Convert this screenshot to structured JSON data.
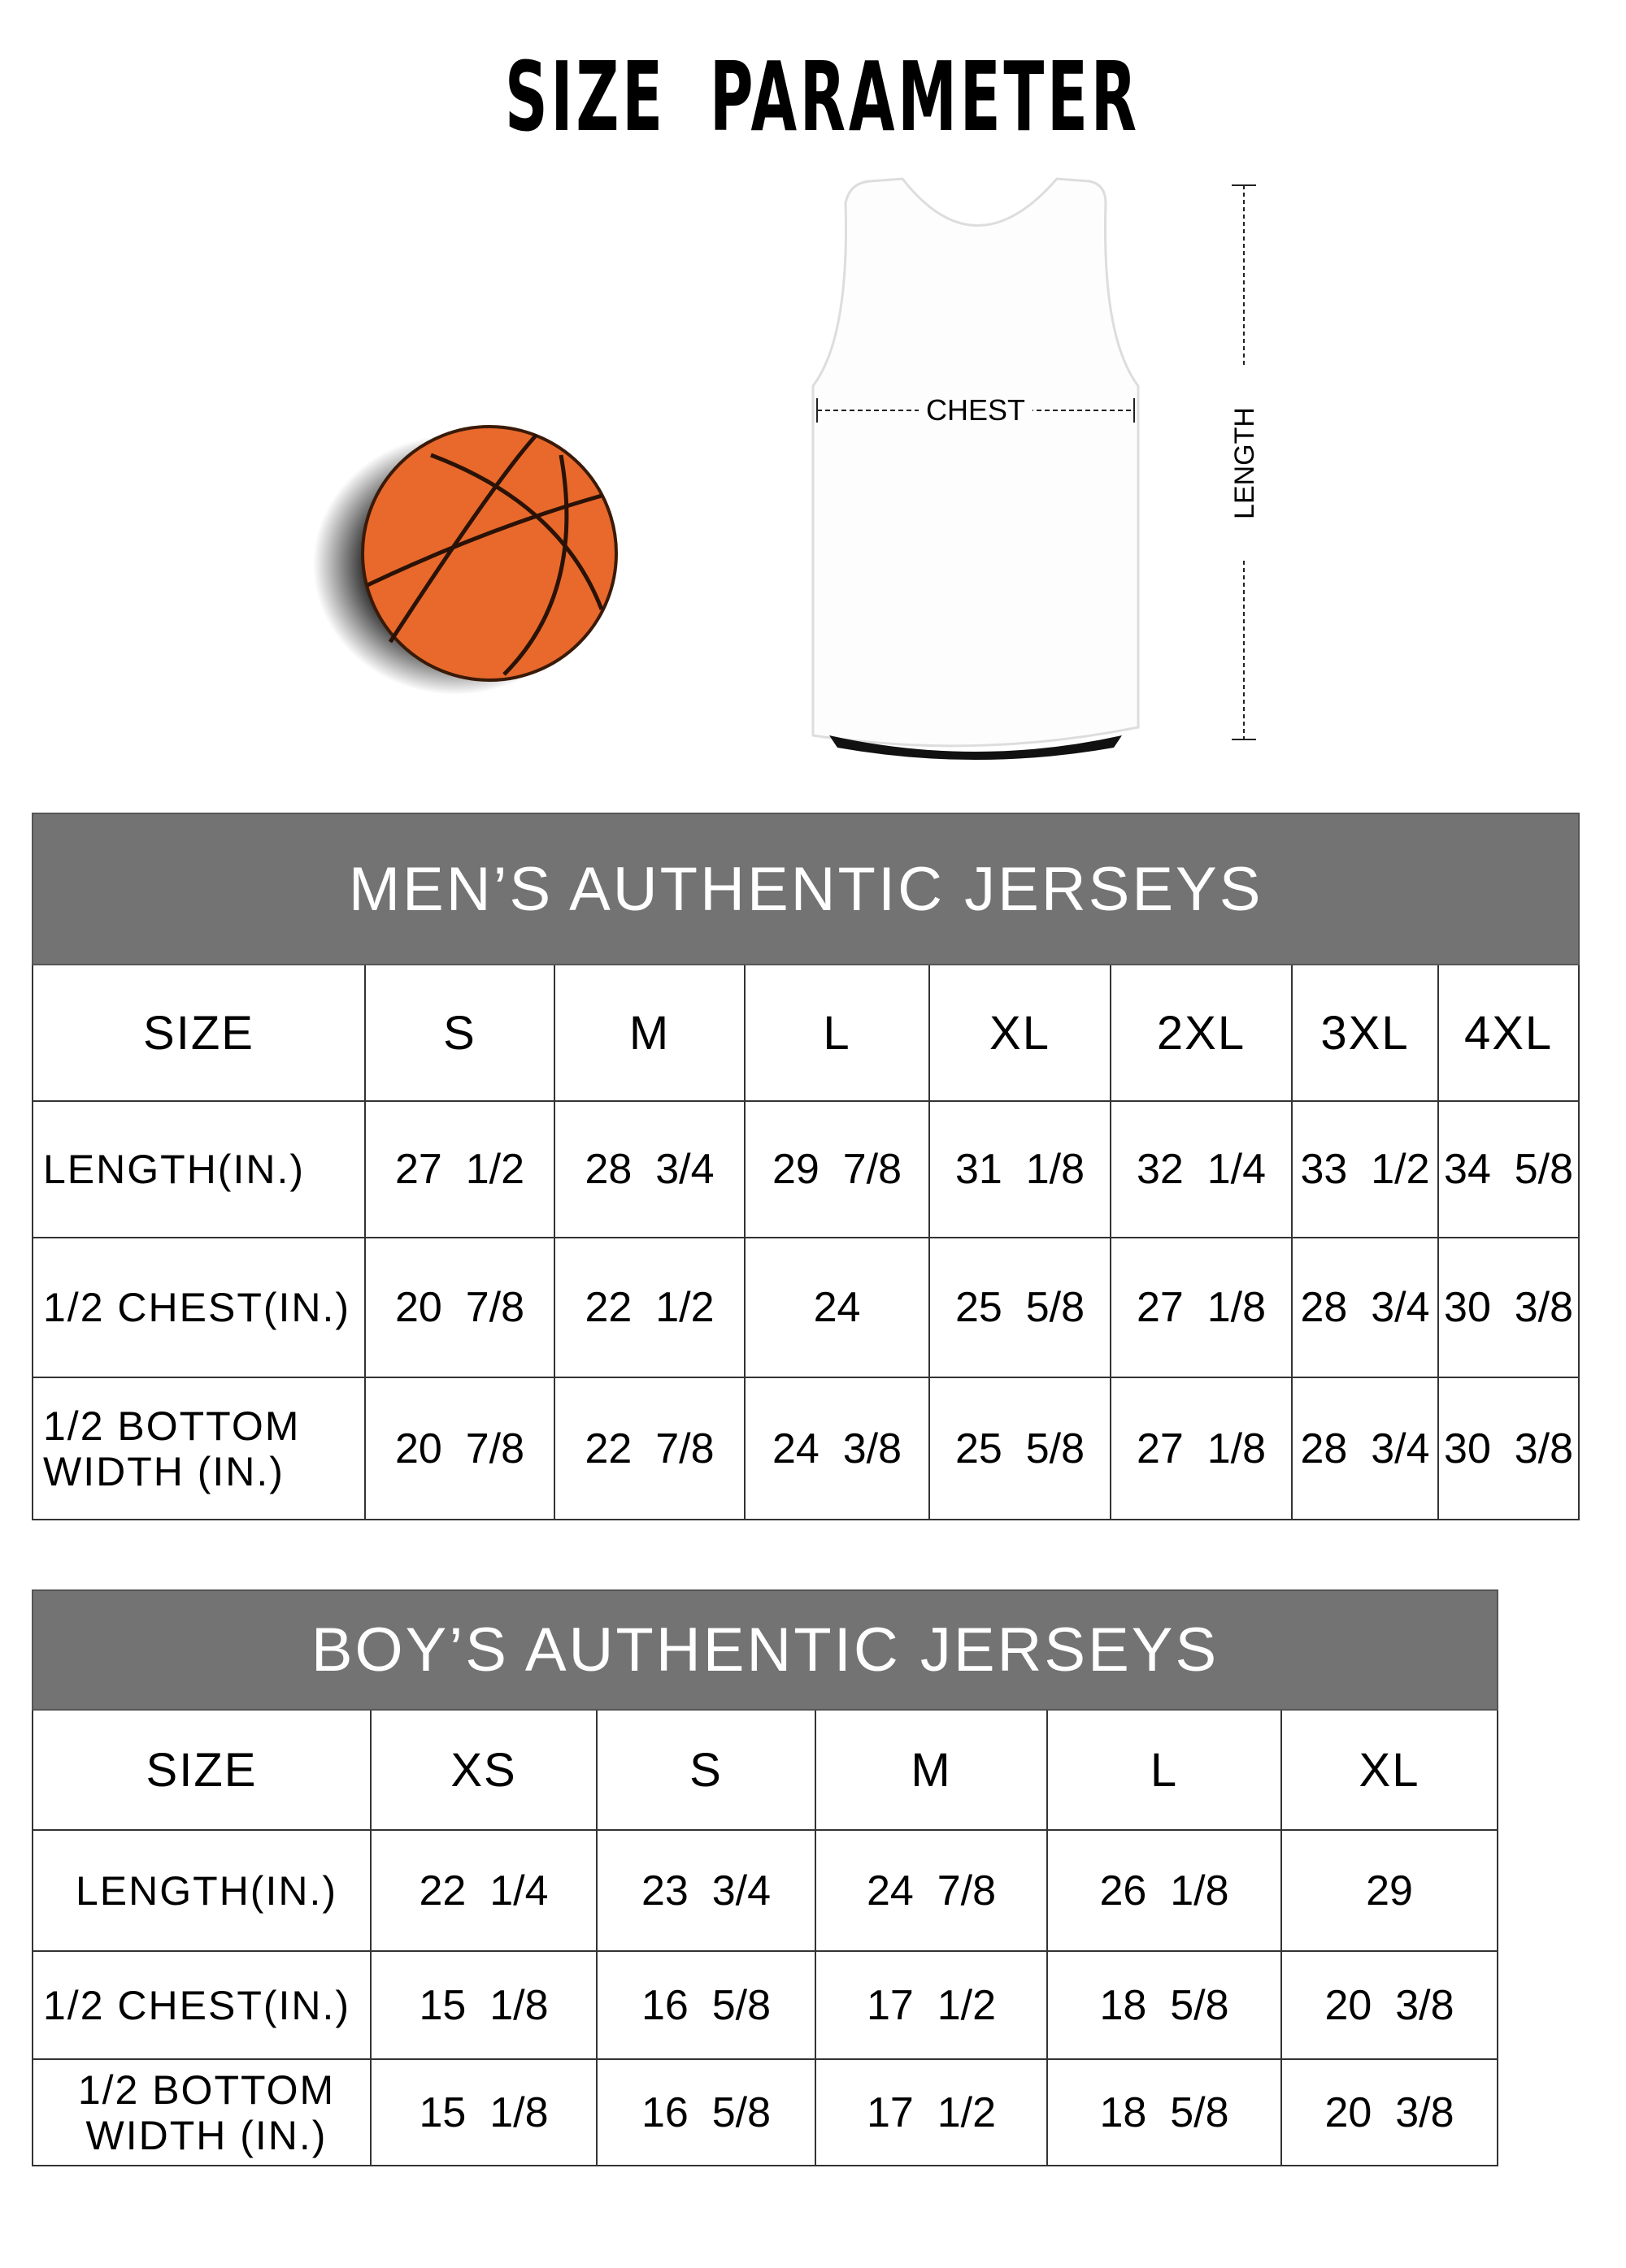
{
  "title": "SIZE PARAMETER",
  "diagram": {
    "chest_label": "CHEST",
    "length_label": "LENGTH",
    "ball_color": "#e8692b",
    "header_color": "#737373"
  },
  "men": {
    "heading": "MEN’S AUTHENTIC JERSEYS",
    "size_label": "SIZE",
    "sizes": [
      "S",
      "M",
      "L",
      "XL",
      "2XL",
      "3XL",
      "4XL"
    ],
    "rows": [
      {
        "label": "LENGTH(IN.)",
        "values": [
          "27  1/2",
          "28  3/4",
          "29  7/8",
          "31  1/8",
          "32  1/4",
          "33  1/2",
          "34  5/8"
        ]
      },
      {
        "label": "1/2 CHEST(IN.)",
        "values": [
          "20  7/8",
          "22  1/2",
          "24",
          "25  5/8",
          "27  1/8",
          "28  3/4",
          "30  3/8"
        ]
      },
      {
        "label": "1/2 BOTTOM WIDTH  (IN.)",
        "values": [
          "20  7/8",
          "22  7/8",
          "24  3/8",
          "25  5/8",
          "27  1/8",
          "28  3/4",
          "30  3/8"
        ]
      }
    ]
  },
  "boy": {
    "heading": "BOY’S AUTHENTIC JERSEYS",
    "size_label": "SIZE",
    "sizes": [
      "XS",
      "S",
      "M",
      "L",
      "XL"
    ],
    "rows": [
      {
        "label": "LENGTH(IN.)",
        "values": [
          "22  1/4",
          "23  3/4",
          "24  7/8",
          "26  1/8",
          "29"
        ]
      },
      {
        "label": "1/2 CHEST(IN.)",
        "values": [
          "15  1/8",
          "16  5/8",
          "17  1/2",
          "18  5/8",
          "20  3/8"
        ]
      },
      {
        "label": "1/2 BOTTOM WIDTH  (IN.)",
        "values": [
          "15  1/8",
          "16  5/8",
          "17  1/2",
          "18  5/8",
          "20  3/8"
        ]
      }
    ]
  }
}
